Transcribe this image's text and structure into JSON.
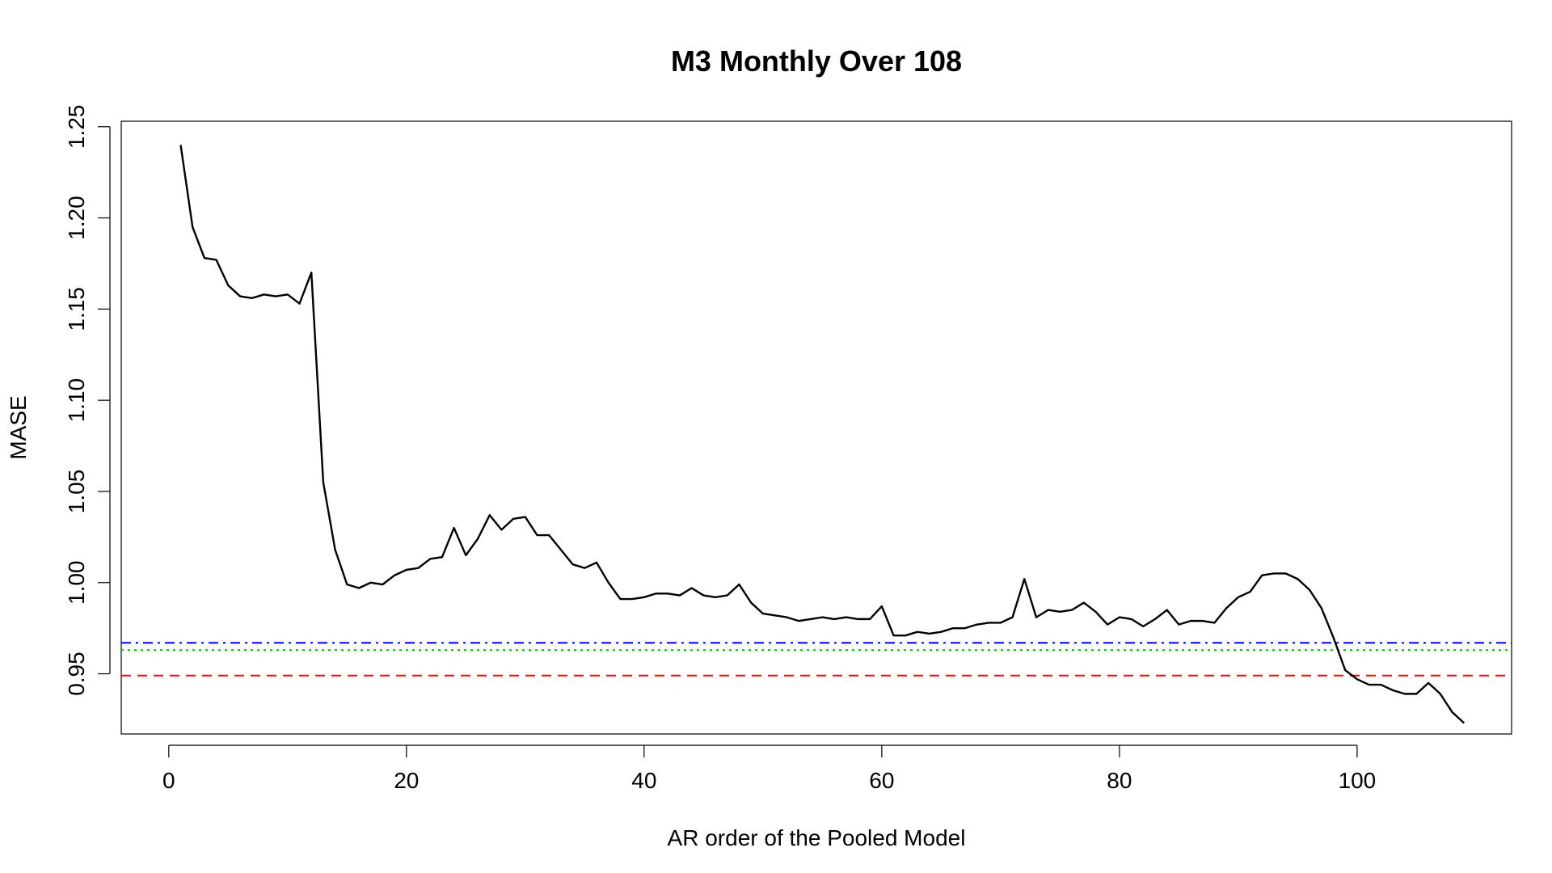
{
  "chart_data": {
    "type": "line",
    "title": "M3 Monthly Over 108",
    "xlabel": "AR order of the Pooled Model",
    "ylabel": "MASE",
    "xlim": [
      -4,
      113
    ],
    "ylim": [
      0.917,
      1.253
    ],
    "x_ticks": [
      0,
      20,
      40,
      60,
      80,
      100
    ],
    "x_tick_labels": [
      "0",
      "20",
      "40",
      "60",
      "80",
      "100"
    ],
    "y_ticks": [
      0.95,
      1.0,
      1.05,
      1.1,
      1.15,
      1.2,
      1.25
    ],
    "y_tick_labels": [
      "0.95",
      "1.00",
      "1.05",
      "1.10",
      "1.15",
      "1.20",
      "1.25"
    ],
    "grid": false,
    "series": [
      {
        "color": "#000000",
        "style": "solid",
        "x": [
          1,
          2,
          3,
          4,
          5,
          6,
          7,
          8,
          9,
          10,
          11,
          12,
          13,
          14,
          15,
          16,
          17,
          18,
          19,
          20,
          21,
          22,
          23,
          24,
          25,
          26,
          27,
          28,
          29,
          30,
          31,
          32,
          33,
          34,
          35,
          36,
          37,
          38,
          39,
          40,
          41,
          42,
          43,
          44,
          45,
          46,
          47,
          48,
          49,
          50,
          51,
          52,
          53,
          54,
          55,
          56,
          57,
          58,
          59,
          60,
          61,
          62,
          63,
          64,
          65,
          66,
          67,
          68,
          69,
          70,
          71,
          72,
          73,
          74,
          75,
          76,
          77,
          78,
          79,
          80,
          81,
          82,
          83,
          84,
          85,
          86,
          87,
          88,
          89,
          90,
          91,
          92,
          93,
          94,
          95,
          96,
          97,
          98,
          99,
          100,
          101,
          102,
          103,
          104,
          105,
          106,
          107,
          108,
          109
        ],
        "values": [
          1.24,
          1.195,
          1.178,
          1.177,
          1.163,
          1.157,
          1.156,
          1.158,
          1.157,
          1.158,
          1.153,
          1.17,
          1.055,
          1.018,
          0.999,
          0.997,
          1.0,
          0.999,
          1.004,
          1.007,
          1.008,
          1.013,
          1.014,
          1.03,
          1.015,
          1.024,
          1.037,
          1.029,
          1.035,
          1.036,
          1.026,
          1.026,
          1.018,
          1.01,
          1.008,
          1.011,
          1.0,
          0.991,
          0.991,
          0.992,
          0.994,
          0.994,
          0.993,
          0.997,
          0.993,
          0.992,
          0.993,
          0.999,
          0.989,
          0.983,
          0.982,
          0.981,
          0.979,
          0.98,
          0.981,
          0.98,
          0.981,
          0.98,
          0.98,
          0.987,
          0.971,
          0.971,
          0.973,
          0.972,
          0.973,
          0.975,
          0.975,
          0.977,
          0.978,
          0.978,
          0.981,
          1.002,
          0.981,
          0.985,
          0.984,
          0.985,
          0.989,
          0.984,
          0.977,
          0.981,
          0.98,
          0.976,
          0.98,
          0.985,
          0.977,
          0.979,
          0.979,
          0.978,
          0.986,
          0.992,
          0.995,
          1.004,
          1.005,
          1.005,
          1.002,
          0.996,
          0.986,
          0.97,
          0.952,
          0.947,
          0.944,
          0.944,
          0.941,
          0.939,
          0.939,
          0.945,
          0.939,
          0.929,
          0.923
        ]
      }
    ],
    "reference_lines": [
      {
        "value": 0.967,
        "color": "#0000ff",
        "style": "dashdot"
      },
      {
        "value": 0.963,
        "color": "#00bb00",
        "style": "dotted"
      },
      {
        "value": 0.949,
        "color": "#ff0000",
        "style": "dashed"
      }
    ]
  }
}
